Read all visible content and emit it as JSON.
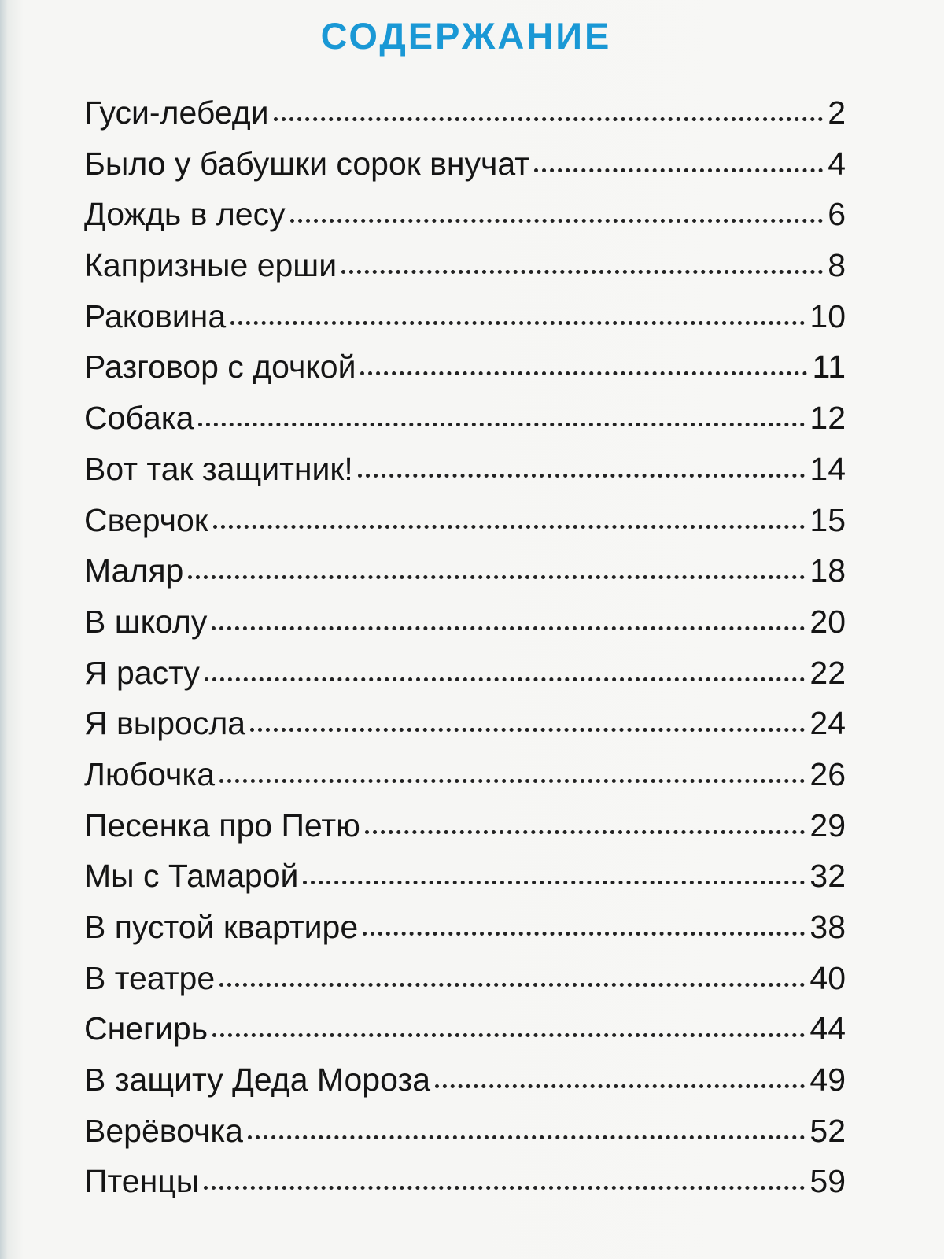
{
  "header": {
    "title": "СОДЕРЖАНИЕ"
  },
  "entries": [
    {
      "title": "Гуси-лебеди",
      "page": "2"
    },
    {
      "title": "Было у бабушки сорок внучат",
      "page": "4"
    },
    {
      "title": "Дождь в лесу",
      "page": "6"
    },
    {
      "title": "Капризные ерши",
      "page": "8"
    },
    {
      "title": "Раковина",
      "page": "10"
    },
    {
      "title": "Разговор с дочкой",
      "page": "11"
    },
    {
      "title": "Собака",
      "page": "12"
    },
    {
      "title": "Вот так защитник!",
      "page": "14"
    },
    {
      "title": "Сверчок",
      "page": "15"
    },
    {
      "title": "Маляр",
      "page": "18"
    },
    {
      "title": "В школу",
      "page": "20"
    },
    {
      "title": "Я расту",
      "page": "22"
    },
    {
      "title": "Я выросла",
      "page": "24"
    },
    {
      "title": "Любочка",
      "page": "26"
    },
    {
      "title": "Песенка про Петю",
      "page": "29"
    },
    {
      "title": "Мы с Тамарой",
      "page": "32"
    },
    {
      "title": "В пустой квартире",
      "page": "38"
    },
    {
      "title": "В театре",
      "page": "40"
    },
    {
      "title": "Снегирь",
      "page": "44"
    },
    {
      "title": "В защиту Деда Мороза",
      "page": "49"
    },
    {
      "title": "Верёвочка",
      "page": "52"
    },
    {
      "title": "Птенцы",
      "page": "59"
    }
  ]
}
